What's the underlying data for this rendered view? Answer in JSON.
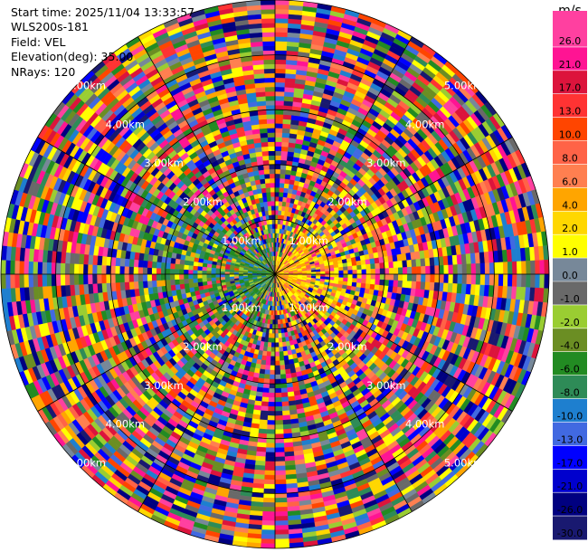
{
  "header": {
    "start_time": "Start time: 2025/11/04 13:33:57",
    "site": "WLS200s-181",
    "field": "Field: VEL",
    "elevation": "Elevation(deg): 35.00",
    "nrays": "NRays: 120"
  },
  "chart_data": {
    "type": "heatmap",
    "projection": "polar-ppi",
    "field": "VEL",
    "units": "m/s",
    "nrays": 120,
    "elevation_deg": 35.0,
    "max_range_km": 5.0,
    "range_rings_km": [
      1.0,
      2.0,
      3.0,
      4.0,
      5.0
    ],
    "ring_labels": [
      "1.00km",
      "2.00km",
      "3.00km",
      "4.00km",
      "5.00km"
    ],
    "spokes_deg": [
      0,
      30,
      60,
      90,
      120,
      150,
      180,
      210,
      240,
      270,
      300,
      330
    ],
    "pattern_summary": {
      "near_field_west": "negative velocities (green / blue, about -4 to -10 m/s)",
      "near_field_east": "positive velocities (yellow / orange, about 2 to 8 m/s)",
      "far_field": "noise across full colour range"
    },
    "colorbar": {
      "unit_label": "m/s",
      "ticks": [
        "26.0",
        "21.0",
        "17.0",
        "13.0",
        "10.0",
        "8.0",
        "6.0",
        "4.0",
        "2.0",
        "1.0",
        "0.0",
        "-1.0",
        "-2.0",
        "-4.0",
        "-6.0",
        "-8.0",
        "-10.0",
        "-13.0",
        "-17.0",
        "-21.0",
        "-26.0",
        "-30.0"
      ],
      "colors": [
        "#ff40a0",
        "#ff1493",
        "#dc143c",
        "#ff3333",
        "#ff4500",
        "#ff6347",
        "#ff7f50",
        "#ffa500",
        "#ffd700",
        "#ffff00",
        "#778899",
        "#696969",
        "#9acd32",
        "#6b8e23",
        "#228b22",
        "#2e8b57",
        "#1e7fcf",
        "#4169e1",
        "#0000ff",
        "#0000cd",
        "#000080",
        "#191970"
      ]
    }
  }
}
